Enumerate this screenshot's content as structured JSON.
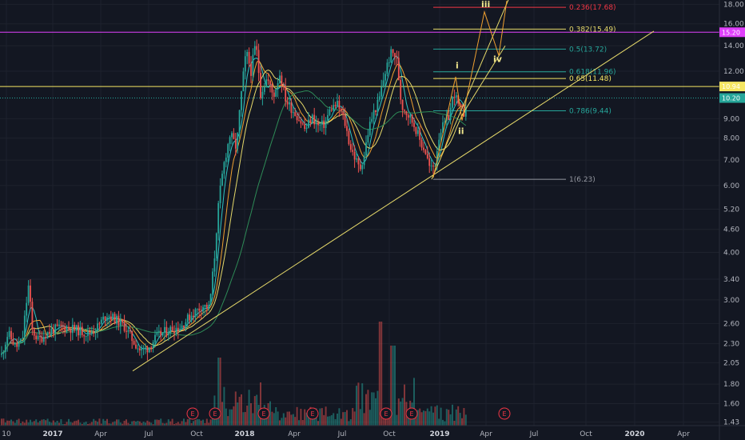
{
  "chart_data": {
    "type": "candlestick",
    "y_scale": "log",
    "ylim": [
      1.4,
      18.3
    ],
    "price_ticks": [
      "18.00",
      "16.00",
      "14.00",
      "12.00",
      "10.94",
      "10.20",
      "9.00",
      "8.00",
      "7.00",
      "6.00",
      "5.20",
      "4.60",
      "4.00",
      "3.40",
      "3.00",
      "2.60",
      "2.30",
      "2.05",
      "1.80",
      "1.60",
      "1.43"
    ],
    "price_tick_values": [
      18.0,
      16.0,
      14.0,
      12.0,
      9.0,
      8.0,
      7.0,
      6.0,
      5.2,
      4.6,
      4.0,
      3.4,
      3.0,
      2.6,
      2.3,
      2.05,
      1.8,
      1.6,
      1.43
    ],
    "time_ticks": [
      {
        "label": "10",
        "bold": false
      },
      {
        "label": "2017",
        "bold": true
      },
      {
        "label": "Apr",
        "bold": false
      },
      {
        "label": "Jul",
        "bold": false
      },
      {
        "label": "Oct",
        "bold": false
      },
      {
        "label": "2018",
        "bold": true
      },
      {
        "label": "Apr",
        "bold": false
      },
      {
        "label": "Jul",
        "bold": false
      },
      {
        "label": "Oct",
        "bold": false
      },
      {
        "label": "2019",
        "bold": true
      },
      {
        "label": "Apr",
        "bold": false
      },
      {
        "label": "Jul",
        "bold": false
      },
      {
        "label": "Oct",
        "bold": false
      },
      {
        "label": "2020",
        "bold": true
      },
      {
        "label": "Apr",
        "bold": false
      }
    ],
    "horizontal_levels": [
      {
        "value": 15.2,
        "color": "#e040fb",
        "tag": "15.20"
      },
      {
        "value": 10.94,
        "color": "#f5e663",
        "tag": "10.94"
      },
      {
        "value": 10.2,
        "color": "#26a69a",
        "tag": "10.20"
      }
    ],
    "fib_levels": [
      {
        "label": "0.236(17.68)",
        "value": 17.68,
        "color": "#f23645"
      },
      {
        "label": "0.382(15.49)",
        "value": 15.49,
        "color": "#e6d96a"
      },
      {
        "label": "0.5(13.72)",
        "value": 13.72,
        "color": "#26a69a"
      },
      {
        "label": "0.618(11.96)",
        "value": 11.96,
        "color": "#26a69a"
      },
      {
        "label": "0.65(11.48)",
        "value": 11.48,
        "color": "#f5e663"
      },
      {
        "label": "0.786(9.44)",
        "value": 9.44,
        "color": "#26a69a"
      },
      {
        "label": "1(6.23)",
        "value": 6.23,
        "color": "#9598a1"
      }
    ],
    "wave_labels": [
      "i",
      "ii",
      "iii",
      "iv"
    ],
    "earnings_markers": [
      "E",
      "E",
      "E",
      "E",
      "E",
      "E",
      "E"
    ],
    "colors": {
      "background": "#131722",
      "up": "#26a69a",
      "down": "#ef5350",
      "ma_fast": "#2ec4c4",
      "ma_mid": "#f0a030",
      "ma_slow": "#e6d96a",
      "ma_long": "#2e8b57",
      "trendline": "#e6d96a"
    }
  }
}
